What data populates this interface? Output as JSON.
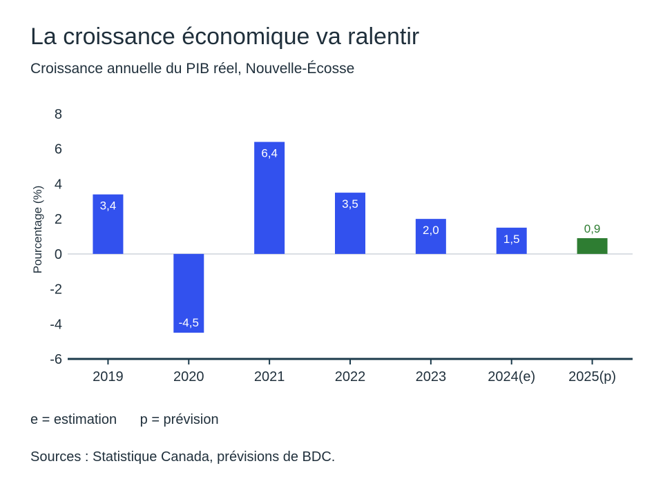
{
  "header": {
    "title": "La croissance économique va ralentir",
    "subtitle": "Croissance annuelle du PIB réel, Nouvelle-Écosse"
  },
  "notes": {
    "estimation": "e = estimation",
    "forecast": "p = prévision",
    "sources": "Sources : Statistique Canada, prévisions de BDC."
  },
  "chart_data": {
    "type": "bar",
    "categories": [
      "2019",
      "2020",
      "2021",
      "2022",
      "2023",
      "2024(e)",
      "2025(p)"
    ],
    "values": [
      3.4,
      -4.5,
      6.4,
      3.5,
      2.0,
      1.5,
      0.9
    ],
    "value_labels": [
      "3,4",
      "-4,5",
      "6,4",
      "3,5",
      "2,0",
      "1,5",
      "0,9"
    ],
    "bar_colors": [
      "#3251ee",
      "#3251ee",
      "#3251ee",
      "#3251ee",
      "#3251ee",
      "#3251ee",
      "#2e7d32"
    ],
    "ylabel": "Pourcentage (%)",
    "ylim": [
      -6,
      8
    ],
    "yticks": [
      8,
      6,
      4,
      2,
      0,
      -2,
      -4,
      -6
    ],
    "ytick_labels": [
      "8",
      "6",
      "4",
      "2",
      "0",
      "-2",
      "-4",
      "-6"
    ],
    "grid": false,
    "colors": {
      "bar": "#3251ee",
      "forecast_bar": "#2e7d32",
      "axis": "#1b3a4b",
      "zero_line": "#d9dde2"
    }
  }
}
